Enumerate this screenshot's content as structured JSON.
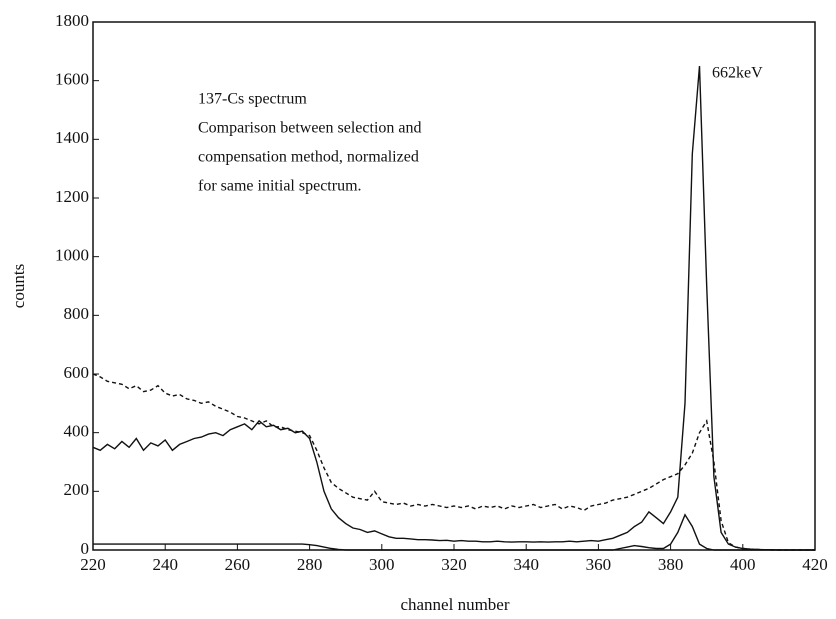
{
  "chart_data": {
    "type": "line",
    "xlabel": "channel number",
    "ylabel": "counts",
    "annotations": [
      "137-Cs spectrum",
      "Comparison between selection and",
      "compensation method, normalized",
      "for same initial spectrum."
    ],
    "peak_label": "662keV",
    "xlim": [
      220,
      420
    ],
    "ylim": [
      0,
      1800
    ],
    "xticks": [
      220,
      240,
      260,
      280,
      300,
      320,
      340,
      360,
      380,
      400,
      420
    ],
    "yticks": [
      0,
      200,
      400,
      600,
      800,
      1000,
      1200,
      1400,
      1600,
      1800
    ],
    "x": [
      220,
      222,
      224,
      226,
      228,
      230,
      232,
      234,
      236,
      238,
      240,
      242,
      244,
      246,
      248,
      250,
      252,
      254,
      256,
      258,
      260,
      262,
      264,
      266,
      268,
      270,
      272,
      274,
      276,
      278,
      280,
      282,
      284,
      286,
      288,
      290,
      292,
      294,
      296,
      298,
      300,
      302,
      304,
      306,
      308,
      310,
      312,
      314,
      316,
      318,
      320,
      322,
      324,
      326,
      328,
      330,
      332,
      334,
      336,
      338,
      340,
      342,
      344,
      346,
      348,
      350,
      352,
      354,
      356,
      358,
      360,
      362,
      364,
      366,
      368,
      370,
      372,
      374,
      376,
      378,
      380,
      382,
      384,
      386,
      388,
      390,
      392,
      394,
      396,
      398,
      400,
      402,
      404,
      406,
      408,
      410,
      412,
      414,
      416,
      418,
      420
    ],
    "series": [
      {
        "color": "#111111",
        "line_style": "solid",
        "values": [
          350,
          340,
          360,
          345,
          370,
          350,
          380,
          340,
          365,
          355,
          375,
          340,
          360,
          370,
          380,
          385,
          395,
          400,
          390,
          410,
          420,
          430,
          410,
          440,
          420,
          425,
          410,
          415,
          400,
          405,
          380,
          300,
          200,
          140,
          110,
          90,
          75,
          70,
          60,
          65,
          55,
          45,
          40,
          40,
          38,
          35,
          35,
          34,
          32,
          33,
          30,
          32,
          30,
          30,
          28,
          28,
          30,
          28,
          27,
          28,
          28,
          27,
          28,
          27,
          28,
          28,
          30,
          28,
          30,
          32,
          30,
          35,
          40,
          50,
          60,
          80,
          95,
          130,
          110,
          90,
          130,
          180,
          500,
          1350,
          1650,
          900,
          250,
          60,
          20,
          10,
          5,
          3,
          2,
          1,
          1,
          0,
          0,
          0,
          0,
          0,
          0
        ]
      },
      {
        "color": "#111111",
        "line_style": "dashed",
        "values": [
          600,
          590,
          575,
          570,
          565,
          550,
          560,
          540,
          545,
          560,
          535,
          525,
          530,
          515,
          510,
          500,
          505,
          490,
          480,
          470,
          455,
          450,
          440,
          430,
          440,
          420,
          420,
          410,
          405,
          400,
          390,
          340,
          280,
          230,
          210,
          195,
          180,
          175,
          170,
          200,
          165,
          160,
          155,
          160,
          150,
          155,
          150,
          155,
          150,
          145,
          150,
          145,
          150,
          140,
          150,
          145,
          150,
          140,
          150,
          145,
          150,
          155,
          145,
          150,
          155,
          140,
          150,
          145,
          135,
          150,
          155,
          160,
          170,
          175,
          180,
          190,
          200,
          210,
          225,
          240,
          250,
          260,
          290,
          330,
          400,
          440,
          300,
          100,
          25,
          10,
          5,
          3,
          2,
          1,
          0,
          0,
          0,
          0,
          0,
          0,
          0
        ]
      },
      {
        "color": "#111111",
        "line_style": "solid",
        "values": [
          20,
          20,
          20,
          20,
          20,
          20,
          20,
          20,
          20,
          20,
          20,
          20,
          20,
          20,
          20,
          20,
          20,
          20,
          20,
          20,
          20,
          20,
          20,
          20,
          20,
          20,
          20,
          20,
          20,
          20,
          18,
          15,
          10,
          5,
          2,
          0,
          0,
          0,
          0,
          0,
          0,
          0,
          0,
          0,
          0,
          0,
          0,
          0,
          0,
          0,
          0,
          0,
          0,
          0,
          0,
          0,
          0,
          0,
          0,
          0,
          0,
          0,
          0,
          0,
          0,
          0,
          0,
          0,
          0,
          0,
          0,
          0,
          0,
          5,
          10,
          15,
          12,
          8,
          5,
          5,
          20,
          60,
          120,
          80,
          20,
          5,
          0,
          0,
          0,
          0,
          0,
          0,
          0,
          0,
          0,
          0,
          0,
          0,
          0,
          0,
          0
        ]
      }
    ]
  }
}
